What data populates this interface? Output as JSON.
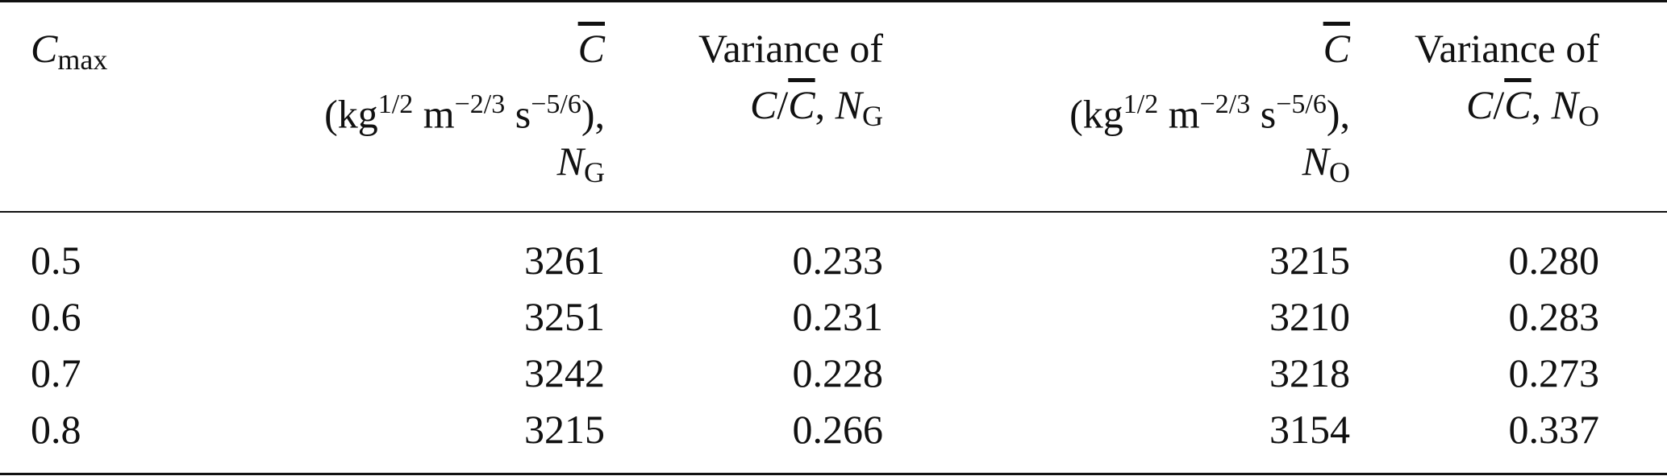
{
  "table": {
    "headers": {
      "col0": {
        "symbol": "C",
        "subscript": "max"
      },
      "col1": {
        "symbol": "C",
        "units_kg": "kg",
        "units_kg_exp": "1/2",
        "units_m": "m",
        "units_m_exp": "−2/3",
        "units_s": "s",
        "units_s_exp": "−5/6",
        "open_paren": "(",
        "close_paren": "),",
        "n_symbol": "N",
        "n_subscript": "G"
      },
      "col2": {
        "line1": "Variance of",
        "c": "C",
        "slash": "/",
        "cbar": "C",
        "comma": ",",
        "n_symbol": "N",
        "n_subscript": "G"
      },
      "col3": {
        "symbol": "C",
        "units_kg": "kg",
        "units_kg_exp": "1/2",
        "units_m": "m",
        "units_m_exp": "−2/3",
        "units_s": "s",
        "units_s_exp": "−5/6",
        "open_paren": "(",
        "close_paren": "),",
        "n_symbol": "N",
        "n_subscript": "O"
      },
      "col4": {
        "line1": "Variance of",
        "c": "C",
        "slash": "/",
        "cbar": "C",
        "comma": ",",
        "n_symbol": "N",
        "n_subscript": "O"
      }
    },
    "rows": [
      [
        "0.5",
        "3261",
        "0.233",
        "3215",
        "0.280"
      ],
      [
        "0.6",
        "3251",
        "0.231",
        "3210",
        "0.283"
      ],
      [
        "0.7",
        "3242",
        "0.228",
        "3218",
        "0.273"
      ],
      [
        "0.8",
        "3215",
        "0.266",
        "3154",
        "0.337"
      ]
    ]
  }
}
